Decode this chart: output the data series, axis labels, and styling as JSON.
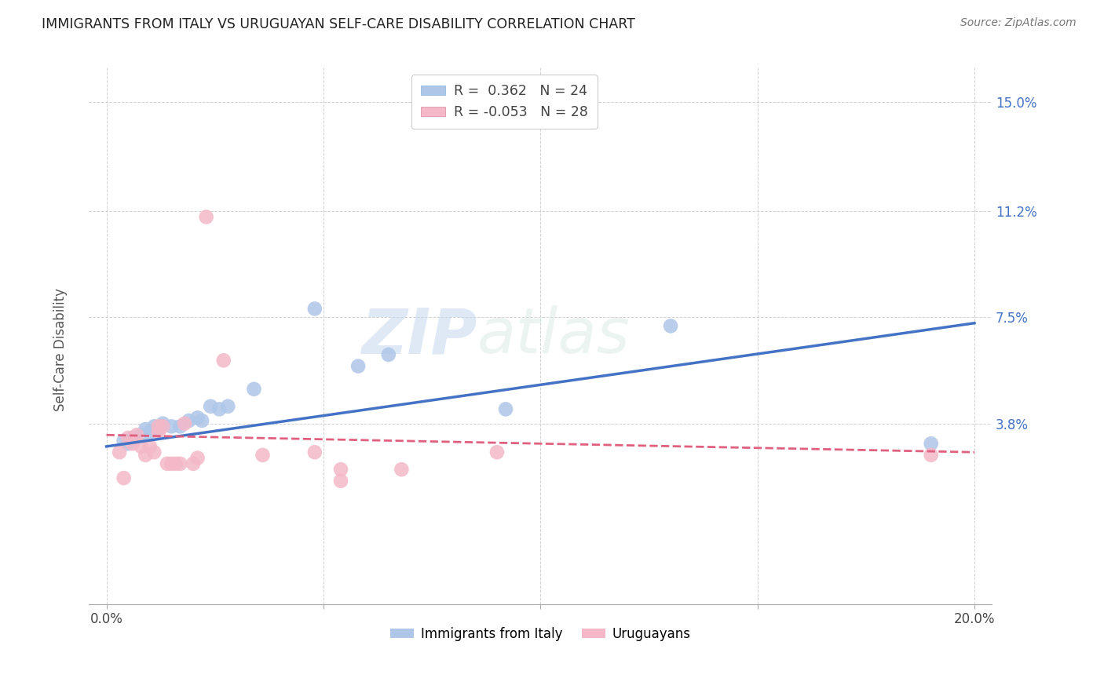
{
  "title": "IMMIGRANTS FROM ITALY VS URUGUAYAN SELF-CARE DISABILITY CORRELATION CHART",
  "source": "Source: ZipAtlas.com",
  "ylabel": "Self-Care Disability",
  "xlim_min": 0.0,
  "xlim_max": 0.2,
  "ylim_min": -0.025,
  "ylim_max": 0.162,
  "yticks": [
    0.038,
    0.075,
    0.112,
    0.15
  ],
  "ytick_labels": [
    "3.8%",
    "7.5%",
    "11.2%",
    "15.0%"
  ],
  "xtick_labels": [
    "0.0%",
    "20.0%"
  ],
  "blue_color": "#aec6e8",
  "blue_line_color": "#4472c4",
  "pink_color": "#f4b8c8",
  "pink_line_color": "#e06080",
  "legend_line1": "R =  0.362   N = 24",
  "legend_line2": "R = -0.053   N = 28",
  "legend_label_blue": "Immigrants from Italy",
  "legend_label_pink": "Uruguayans",
  "watermark": "ZIPatlas",
  "blue_dots": [
    [
      0.004,
      0.032
    ],
    [
      0.005,
      0.031
    ],
    [
      0.006,
      0.033
    ],
    [
      0.008,
      0.034
    ],
    [
      0.009,
      0.036
    ],
    [
      0.01,
      0.035
    ],
    [
      0.011,
      0.037
    ],
    [
      0.012,
      0.036
    ],
    [
      0.013,
      0.038
    ],
    [
      0.015,
      0.037
    ],
    [
      0.017,
      0.037
    ],
    [
      0.019,
      0.039
    ],
    [
      0.021,
      0.04
    ],
    [
      0.022,
      0.039
    ],
    [
      0.024,
      0.044
    ],
    [
      0.026,
      0.043
    ],
    [
      0.028,
      0.044
    ],
    [
      0.034,
      0.05
    ],
    [
      0.048,
      0.078
    ],
    [
      0.058,
      0.058
    ],
    [
      0.065,
      0.062
    ],
    [
      0.092,
      0.043
    ],
    [
      0.13,
      0.072
    ],
    [
      0.19,
      0.031
    ]
  ],
  "pink_dots": [
    [
      0.003,
      0.028
    ],
    [
      0.004,
      0.019
    ],
    [
      0.005,
      0.033
    ],
    [
      0.006,
      0.031
    ],
    [
      0.007,
      0.034
    ],
    [
      0.008,
      0.03
    ],
    [
      0.009,
      0.027
    ],
    [
      0.01,
      0.03
    ],
    [
      0.011,
      0.028
    ],
    [
      0.012,
      0.035
    ],
    [
      0.012,
      0.037
    ],
    [
      0.013,
      0.037
    ],
    [
      0.014,
      0.024
    ],
    [
      0.015,
      0.024
    ],
    [
      0.016,
      0.024
    ],
    [
      0.017,
      0.024
    ],
    [
      0.018,
      0.038
    ],
    [
      0.02,
      0.024
    ],
    [
      0.021,
      0.026
    ],
    [
      0.023,
      0.11
    ],
    [
      0.027,
      0.06
    ],
    [
      0.036,
      0.027
    ],
    [
      0.048,
      0.028
    ],
    [
      0.054,
      0.022
    ],
    [
      0.054,
      0.018
    ],
    [
      0.068,
      0.022
    ],
    [
      0.09,
      0.028
    ],
    [
      0.19,
      0.027
    ]
  ],
  "blue_line_x0": 0.0,
  "blue_line_x1": 0.2,
  "blue_line_y0": 0.03,
  "blue_line_y1": 0.073,
  "pink_line_x0": 0.0,
  "pink_line_x1": 0.2,
  "pink_line_y0": 0.034,
  "pink_line_y1": 0.028
}
